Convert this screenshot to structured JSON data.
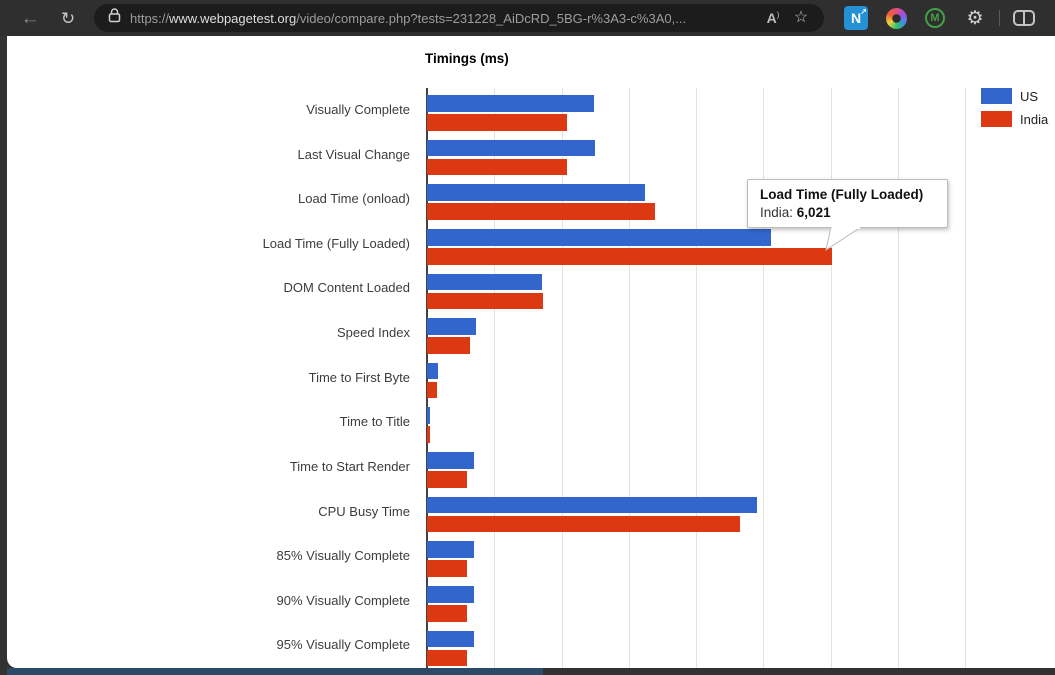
{
  "browser": {
    "url_scheme": "https://",
    "url_domain": "www.webpagetest.org",
    "url_path": "/video/compare.php?tests=231228_AiDcRD_5BG-r%3A3-c%3A0,...",
    "icons": {
      "back": "←",
      "refresh": "↻",
      "read_aloud": "A",
      "star": "☆",
      "ext_n": "N",
      "ext_n_arrow": "↗",
      "ext_m": "M",
      "gear": "⚙"
    }
  },
  "chart_data": {
    "type": "bar",
    "orientation": "horizontal",
    "title": "Timings (ms)",
    "units": "ms",
    "categories": [
      "Visually Complete",
      "Last Visual Change",
      "Load Time (onload)",
      "Load Time (Fully Loaded)",
      "DOM Content Loaded",
      "Speed Index",
      "Time to First Byte",
      "Time to Title",
      "Time to Start Render",
      "CPU Busy Time",
      "85% Visually Complete",
      "90% Visually Complete",
      "95% Visually Complete"
    ],
    "series": [
      {
        "name": "US",
        "color": "#3366CC",
        "values": [
          2480,
          2490,
          3235,
          5110,
          1705,
          735,
          165,
          45,
          695,
          4900,
          695,
          695,
          695
        ]
      },
      {
        "name": "India",
        "color": "#DC3912",
        "values": [
          2085,
          2085,
          3390,
          6021,
          1720,
          640,
          145,
          40,
          600,
          4650,
          595,
          600,
          595
        ]
      }
    ],
    "xlim": [
      0,
      8000
    ],
    "gridline_interval": 1000,
    "grid": true,
    "legend_position": "top-right"
  },
  "tooltip": {
    "title": "Load Time (Fully Loaded)",
    "series_label": "India:",
    "value": "6,021"
  }
}
